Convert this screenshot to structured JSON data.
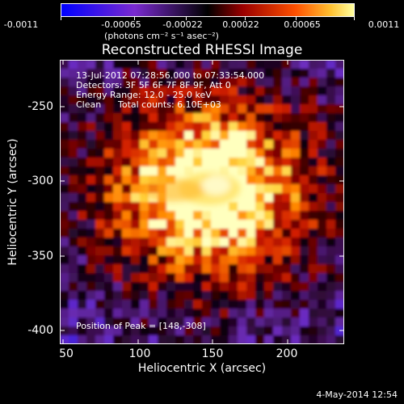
{
  "colorbar": {
    "ticks": [
      "-0.0011",
      "-0.00065",
      "-0.00022",
      "0.00022",
      "0.00065",
      "0.0011"
    ],
    "unit": "(photons cm⁻² s⁻¹ asec⁻²)",
    "min": -0.0011,
    "max": 0.0011
  },
  "chart_data": {
    "type": "heatmap",
    "title": "Reconstructed RHESSI Image",
    "xlabel": "Heliocentric X (arcsec)",
    "ylabel": "Heliocentric Y (arcsec)",
    "xlim": [
      48,
      238
    ],
    "ylim": [
      -412,
      -222
    ],
    "x_ticks": [
      "50",
      "100",
      "150",
      "200"
    ],
    "y_ticks": [
      "-250",
      "-300",
      "-350",
      "-400"
    ],
    "peak": [
      148,
      -308
    ],
    "colormap": [
      "#0a0aff",
      "#5a22c8",
      "#120010",
      "#5a0000",
      "#c81a00",
      "#ff8a00",
      "#fff070"
    ]
  },
  "annotations": {
    "time_range": "13-Jul-2012 07:28:56.000 to 07:33:54.000",
    "detectors": "Detectors: 3F 5F 6F 7F 8F 9F, Att 0",
    "energy": "Energy Range: 12.0 - 25.0 keV",
    "clean": "Clean",
    "total_counts": "Total counts: 6.10E+03",
    "peak_position": "Position of Peak = [148,-308]"
  },
  "footer": {
    "date": "4-May-2014 12:54"
  }
}
